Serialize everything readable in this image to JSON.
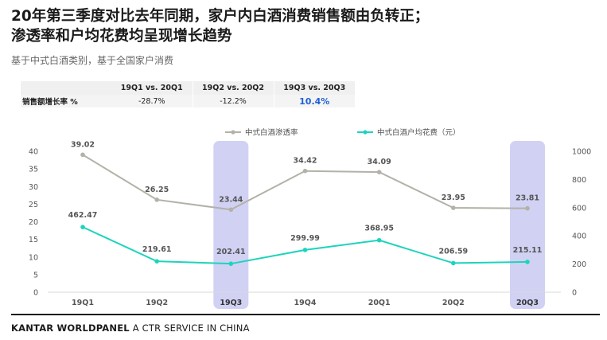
{
  "title_line1": "20年第三季度对比去年同期，家户内白酒消费销售额由负转正；",
  "title_line2": "渗透率和户均花费均呈现增长趋势",
  "subtitle": "基于中式白酒类别，基于全国家户消费",
  "comparison_table": {
    "headers": [
      "19Q1 vs. 20Q1",
      "19Q2 vs. 20Q2",
      "19Q3 vs. 20Q3"
    ],
    "row_label": "销售额增长率 %",
    "values": [
      "-28.7%",
      "-12.2%",
      "10.4%"
    ]
  },
  "footer": {
    "brand": "KANTAR WORLDPANEL",
    "tagline": "A CTR SERVICE IN CHINA"
  },
  "colors": {
    "penetration": "#b3b1a8",
    "spend": "#1dd4bc",
    "highlight_band": "#c9c9f2",
    "highlight_text": "#1f5fd6"
  },
  "chart_data": {
    "type": "line",
    "categories": [
      "19Q1",
      "19Q2",
      "19Q3",
      "19Q4",
      "20Q1",
      "20Q2",
      "20Q3"
    ],
    "highlighted_categories": [
      "19Q3",
      "20Q3"
    ],
    "series": [
      {
        "name": "中式白酒渗透率",
        "axis": "left",
        "values": [
          39.02,
          26.25,
          23.44,
          34.42,
          34.09,
          23.95,
          23.81
        ]
      },
      {
        "name": "中式白酒户均花费（元）",
        "axis": "right",
        "values": [
          462.47,
          219.61,
          202.41,
          299.99,
          368.95,
          206.59,
          215.11
        ]
      }
    ],
    "left_axis": {
      "min": 0,
      "max": 40,
      "ticks": [
        0,
        5,
        10,
        15,
        20,
        25,
        30,
        35,
        40
      ]
    },
    "right_axis": {
      "min": 0,
      "max": 1000,
      "ticks": [
        0,
        200,
        400,
        600,
        800,
        1000
      ]
    },
    "legend_position": "top-center"
  }
}
